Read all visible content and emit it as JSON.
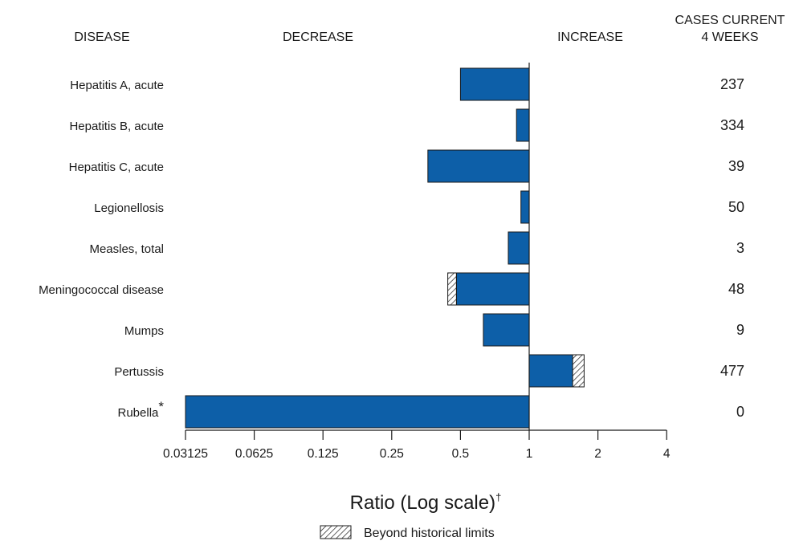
{
  "chart_data": {
    "type": "bar",
    "orientation": "horizontal",
    "scale": "log2",
    "xlim": [
      0.03125,
      4
    ],
    "reference_value": 1,
    "headers": {
      "disease": "DISEASE",
      "decrease": "DECREASE",
      "increase": "INCREASE",
      "cases_line1": "CASES CURRENT",
      "cases_line2": "4 WEEKS"
    },
    "categories": [
      "Hepatitis A, acute",
      "Hepatitis B, acute",
      "Hepatitis C, acute",
      "Legionellosis",
      "Measles, total",
      "Meningococcal disease",
      "Mumps",
      "Pertussis",
      "Rubella"
    ],
    "category_marks": [
      "",
      "",
      "",
      "",
      "",
      "",
      "",
      "",
      "*"
    ],
    "values": [
      0.5,
      0.88,
      0.36,
      0.92,
      0.81,
      0.48,
      0.63,
      1.55,
      0.03125
    ],
    "beyond_historical_limits": [
      null,
      null,
      null,
      null,
      null,
      0.44,
      null,
      1.74,
      null
    ],
    "cases_current_4_weeks": [
      "237",
      "334",
      "39",
      "50",
      "3",
      "48",
      "9",
      "477",
      "0"
    ],
    "x_ticks": [
      "0.03125",
      "0.0625",
      "0.125",
      "0.25",
      "0.5",
      "1",
      "2",
      "4"
    ],
    "tick_values": [
      0.03125,
      0.0625,
      0.125,
      0.25,
      0.5,
      1,
      2,
      4
    ],
    "xlabel": "Ratio (Log scale)",
    "xlabel_mark": "†",
    "legend": "Beyond historical limits",
    "colors": {
      "bar": "#0d5fa8",
      "outline": "#1a1a1a",
      "hatch": "#1a1a1a"
    }
  }
}
